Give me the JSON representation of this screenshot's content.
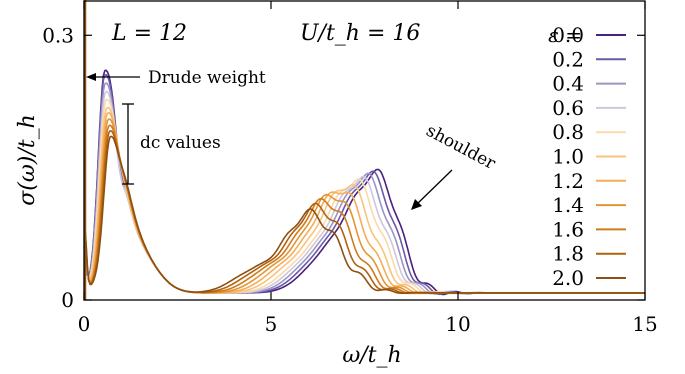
{
  "chart_data": {
    "type": "line",
    "title": "",
    "xlabel": "ω/t_h",
    "ylabel": "σ(ω)/t_h",
    "xlim": [
      0,
      15
    ],
    "ylim": [
      0,
      0.34
    ],
    "x_ticks": [
      {
        "value": 0,
        "label": "0"
      },
      {
        "value": 5,
        "label": "5"
      },
      {
        "value": 10,
        "label": "10"
      },
      {
        "value": 15,
        "label": "15"
      }
    ],
    "y_ticks": [
      {
        "value": 0,
        "label": "0"
      },
      {
        "value": 0.3,
        "label": "0.3"
      }
    ],
    "grid": false,
    "legend_placement": "right",
    "legend_header": "ε =",
    "annotations": {
      "L": "L = 12",
      "U": "U/t_h = 16",
      "drude": "Drude weight",
      "dc": "dc values",
      "shoulder": "shoulder"
    },
    "drude_peak": {
      "x": 0,
      "y": 0.34
    },
    "series": [
      {
        "name": "0.0",
        "color": "#4a2080",
        "peak1": {
          "x": 0.55,
          "y": 0.23
        },
        "peak2": {
          "x": 7.85,
          "y": 0.135
        },
        "dc": 0.04
      },
      {
        "name": "0.2",
        "color": "#6a5aa6",
        "peak1": {
          "x": 0.55,
          "y": 0.225
        },
        "peak2": {
          "x": 7.7,
          "y": 0.133
        },
        "dc": 0.045
      },
      {
        "name": "0.4",
        "color": "#9c94c4",
        "peak1": {
          "x": 0.56,
          "y": 0.215
        },
        "peak2": {
          "x": 7.55,
          "y": 0.131
        },
        "dc": 0.05
      },
      {
        "name": "0.6",
        "color": "#ccc8e0",
        "peak1": {
          "x": 0.57,
          "y": 0.205
        },
        "peak2": {
          "x": 7.4,
          "y": 0.128
        },
        "dc": 0.055
      },
      {
        "name": "0.8",
        "color": "#fbd9a8",
        "peak1": {
          "x": 0.58,
          "y": 0.195
        },
        "peak2": {
          "x": 7.25,
          "y": 0.126
        },
        "dc": 0.06
      },
      {
        "name": "1.0",
        "color": "#f8c37c",
        "peak1": {
          "x": 0.6,
          "y": 0.185
        },
        "peak2": {
          "x": 7.05,
          "y": 0.122
        },
        "dc": 0.065
      },
      {
        "name": "1.2",
        "color": "#f2ae5c",
        "peak1": {
          "x": 0.62,
          "y": 0.178
        },
        "peak2": {
          "x": 6.85,
          "y": 0.117
        },
        "dc": 0.07
      },
      {
        "name": "1.4",
        "color": "#e39534",
        "peak1": {
          "x": 0.64,
          "y": 0.17
        },
        "peak2": {
          "x": 6.65,
          "y": 0.111
        },
        "dc": 0.075
      },
      {
        "name": "1.6",
        "color": "#d07a1c",
        "peak1": {
          "x": 0.66,
          "y": 0.162
        },
        "peak2": {
          "x": 6.45,
          "y": 0.104
        },
        "dc": 0.08
      },
      {
        "name": "1.8",
        "color": "#b0620e",
        "peak1": {
          "x": 0.68,
          "y": 0.155
        },
        "peak2": {
          "x": 6.25,
          "y": 0.097
        },
        "dc": 0.085
      },
      {
        "name": "2.0",
        "color": "#8e5012",
        "peak1": {
          "x": 0.7,
          "y": 0.148
        },
        "peak2": {
          "x": 6.05,
          "y": 0.09
        },
        "dc": 0.09
      }
    ]
  }
}
